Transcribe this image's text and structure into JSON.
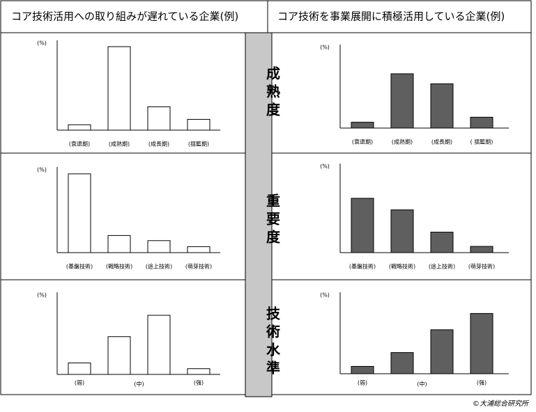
{
  "header": [
    "コア技術活用への取り組みが遅れている企業(例)",
    "コア技術を事業展開に積極活用している企業(例)"
  ],
  "rows": [
    "成熟度",
    "重要度",
    "技術水準"
  ],
  "credit": "©大浦総合研究所",
  "chart_data": [
    {
      "type": "bar",
      "ylabel": "(%)",
      "categories": [
        "(衰退期)",
        "(成熟期)",
        "(成長期)",
        "(揺籃期)"
      ],
      "values": [
        6,
        93,
        26,
        12
      ],
      "color": "#ffffff",
      "ylim": [
        0,
        100
      ]
    },
    {
      "type": "bar",
      "ylabel": "(%)",
      "categories": [
        "(衰退期)",
        "(成熟期)",
        "(成長期)",
        "( 揺籃期)"
      ],
      "values": [
        7,
        65,
        53,
        13
      ],
      "color": "#5f5f5f",
      "ylim": [
        0,
        100
      ]
    },
    {
      "type": "bar",
      "ylabel": "(%)",
      "categories": [
        "(基盤技術)",
        "(戦略技術)",
        "(途上技術)",
        "(萌芽技術)"
      ],
      "values": [
        92,
        20,
        14,
        7
      ],
      "color": "#ffffff",
      "ylim": [
        0,
        100
      ]
    },
    {
      "type": "bar",
      "ylabel": "(%)",
      "categories": [
        "(基盤技術)",
        "(戦略技術)",
        "(途上技術)",
        "(萌芽技術)"
      ],
      "values": [
        61,
        48,
        23,
        7
      ],
      "color": "#5f5f5f",
      "ylim": [
        0,
        100
      ]
    },
    {
      "type": "bar",
      "ylabel": "(%)",
      "categories": [
        "(弱)",
        null,
        null,
        "(強)"
      ],
      "xlabel": "(中)",
      "values": [
        14,
        46,
        72,
        7
      ],
      "color": "#ffffff",
      "ylim": [
        0,
        100
      ]
    },
    {
      "type": "bar",
      "ylabel": "(%)",
      "categories": [
        "(弱)",
        null,
        null,
        "(強)"
      ],
      "xlabel": "(中)",
      "values": [
        9,
        26,
        54,
        74
      ],
      "color": "#5f5f5f",
      "ylim": [
        0,
        100
      ]
    }
  ]
}
